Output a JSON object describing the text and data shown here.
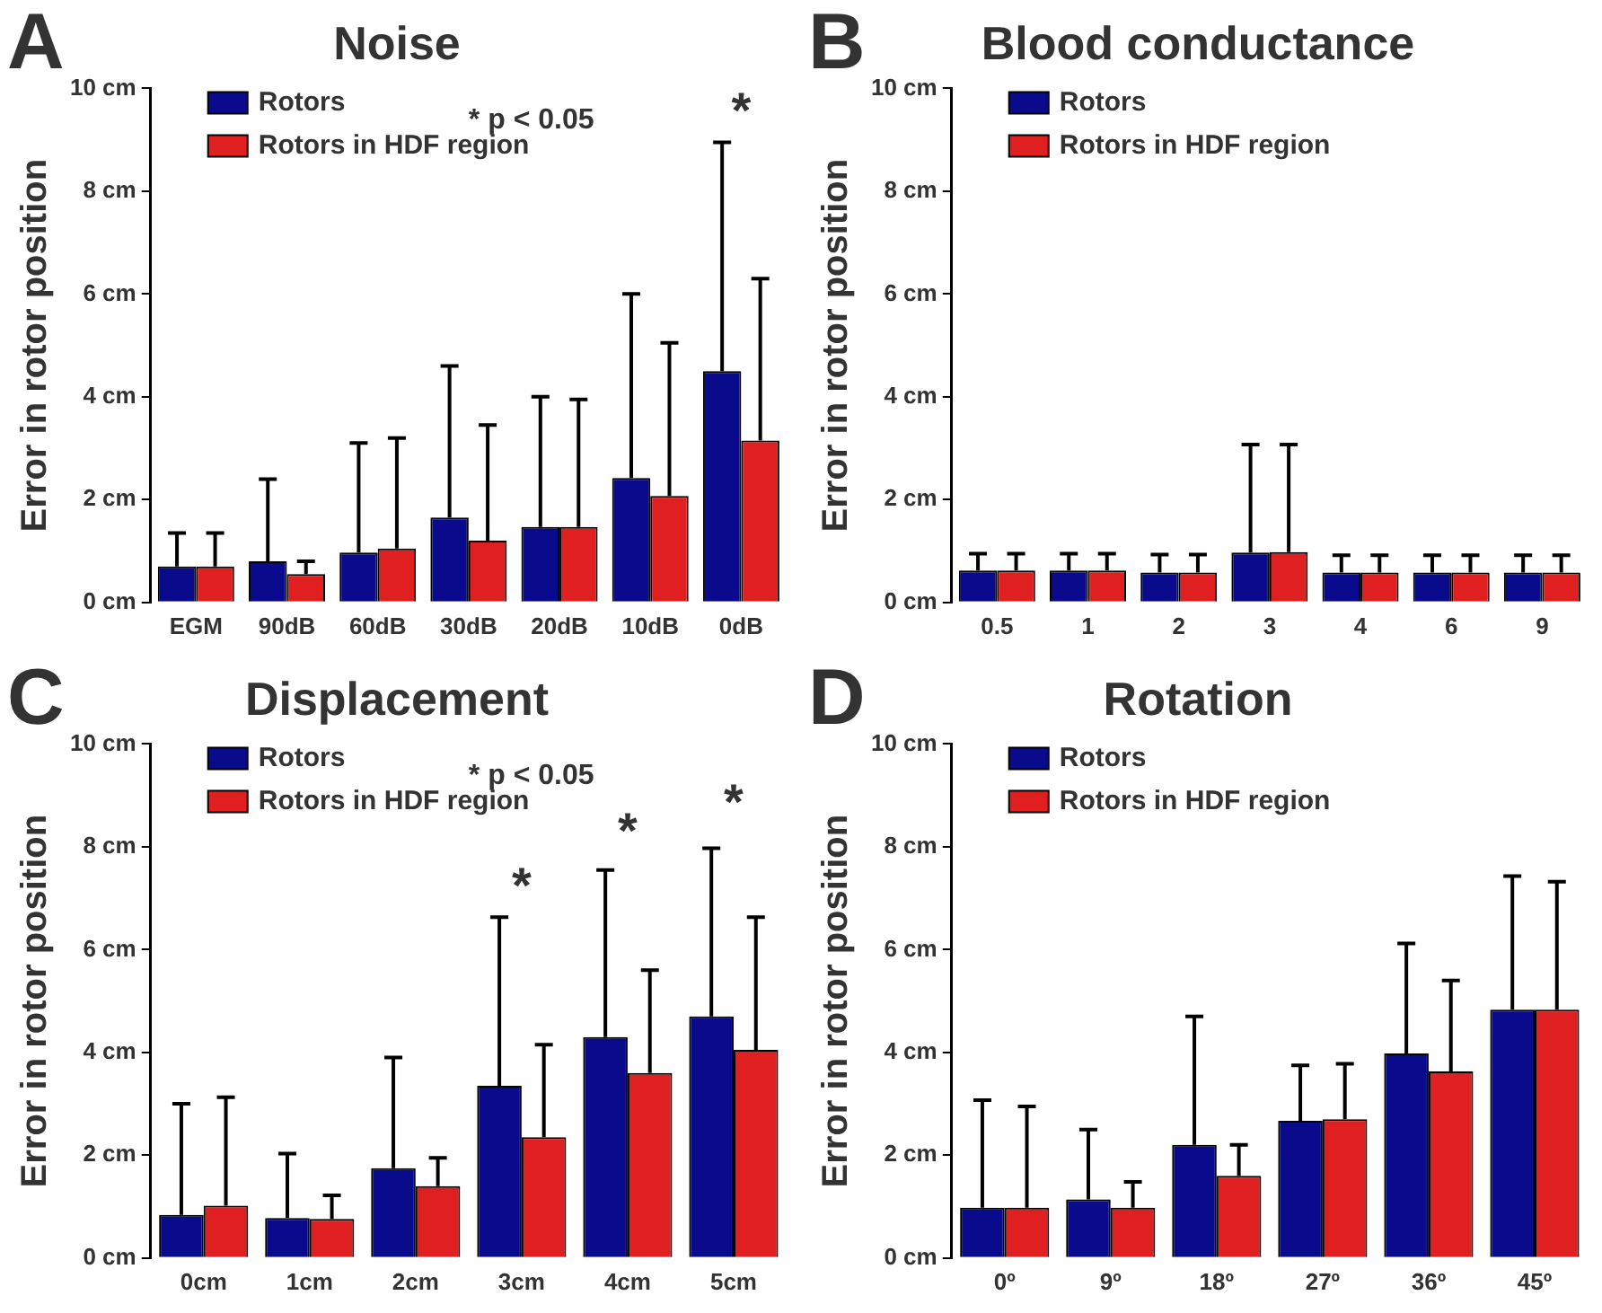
{
  "chart_data": [
    {
      "type": "bar",
      "title": "Noise",
      "ylabel": "Error in rotor position",
      "categories": [
        "EGM",
        "90dB",
        "60dB",
        "30dB",
        "20dB",
        "10dB",
        "0dB"
      ],
      "ylim": [
        0,
        10
      ],
      "yticks": [
        {
          "value": 0,
          "label": "0 cm"
        },
        {
          "value": 2,
          "label": "2 cm"
        },
        {
          "value": 4,
          "label": "4 cm"
        },
        {
          "value": 6,
          "label": "6 cm"
        },
        {
          "value": 8,
          "label": "8 cm"
        },
        {
          "value": 10,
          "label": "10 cm"
        }
      ],
      "grid": false,
      "legend": "top left",
      "series": [
        {
          "name": "Rotors",
          "color": "#0a0a8c",
          "values": [
            0.7,
            0.8,
            0.97,
            1.65,
            1.47,
            2.42,
            4.5
          ],
          "errors": [
            [
              0.7,
              1.35
            ],
            [
              0.8,
              2.4
            ],
            [
              0.97,
              3.1
            ],
            [
              1.65,
              4.6
            ],
            [
              1.47,
              4.0
            ],
            [
              2.42,
              6.0
            ],
            [
              4.5,
              8.95
            ]
          ]
        },
        {
          "name": "Rotors in HDF region",
          "color": "#e02020",
          "values": [
            0.7,
            0.55,
            1.05,
            1.2,
            1.47,
            2.07,
            3.15
          ],
          "errors": [
            [
              0.7,
              1.35
            ],
            [
              0.55,
              0.8
            ],
            [
              1.05,
              3.2
            ],
            [
              1.2,
              3.45
            ],
            [
              1.47,
              3.95
            ],
            [
              2.07,
              5.05
            ],
            [
              3.15,
              6.3
            ]
          ]
        }
      ],
      "annotations": [
        "A",
        "* p < 0.05",
        "*"
      ]
    },
    {
      "type": "bar",
      "title": "Blood conductance",
      "ylabel": "Error in rotor position",
      "categories": [
        "0.5",
        "1",
        "2",
        "3",
        "4",
        "6",
        "9"
      ],
      "ylim": [
        0,
        10
      ],
      "yticks": [
        {
          "value": 0,
          "label": "0 cm"
        },
        {
          "value": 2,
          "label": "2 cm"
        },
        {
          "value": 4,
          "label": "4 cm"
        },
        {
          "value": 6,
          "label": "6 cm"
        },
        {
          "value": 8,
          "label": "8 cm"
        },
        {
          "value": 10,
          "label": "10 cm"
        }
      ],
      "grid": false,
      "legend": "top left",
      "series": [
        {
          "name": "Rotors",
          "color": "#0a0a8c",
          "values": [
            0.62,
            0.62,
            0.58,
            0.97,
            0.58,
            0.58,
            0.58
          ],
          "errors": [
            [
              0.62,
              0.95
            ],
            [
              0.62,
              0.95
            ],
            [
              0.58,
              0.93
            ],
            [
              0.97,
              3.07
            ],
            [
              0.58,
              0.92
            ],
            [
              0.58,
              0.92
            ],
            [
              0.58,
              0.92
            ]
          ]
        },
        {
          "name": "Rotors in HDF region",
          "color": "#e02020",
          "values": [
            0.62,
            0.62,
            0.58,
            0.98,
            0.58,
            0.58,
            0.58
          ],
          "errors": [
            [
              0.62,
              0.95
            ],
            [
              0.62,
              0.95
            ],
            [
              0.58,
              0.93
            ],
            [
              0.98,
              3.07
            ],
            [
              0.58,
              0.92
            ],
            [
              0.58,
              0.92
            ],
            [
              0.58,
              0.92
            ]
          ]
        }
      ],
      "annotations": [
        "B"
      ]
    },
    {
      "type": "bar",
      "title": "Displacement",
      "ylabel": "Error in rotor position",
      "categories": [
        "0cm",
        "1cm",
        "2cm",
        "3cm",
        "4cm",
        "5cm"
      ],
      "ylim": [
        0,
        10
      ],
      "yticks": [
        {
          "value": 0,
          "label": "0 cm"
        },
        {
          "value": 2,
          "label": "2 cm"
        },
        {
          "value": 4,
          "label": "4 cm"
        },
        {
          "value": 6,
          "label": "6 cm"
        },
        {
          "value": 8,
          "label": "8 cm"
        },
        {
          "value": 10,
          "label": "10 cm"
        }
      ],
      "grid": false,
      "legend": "top left",
      "series": [
        {
          "name": "Rotors",
          "color": "#0a0a8c",
          "values": [
            0.84,
            0.78,
            1.75,
            3.35,
            4.3,
            4.7
          ],
          "errors": [
            [
              0.84,
              3.0
            ],
            [
              0.78,
              2.03
            ],
            [
              1.75,
              3.9
            ],
            [
              3.35,
              6.63
            ],
            [
              4.3,
              7.55
            ],
            [
              4.7,
              7.97
            ]
          ]
        },
        {
          "name": "Rotors in HDF region",
          "color": "#e02020",
          "values": [
            1.02,
            0.76,
            1.4,
            2.35,
            3.6,
            4.05
          ],
          "errors": [
            [
              1.02,
              3.13
            ],
            [
              0.76,
              1.22
            ],
            [
              1.4,
              1.95
            ],
            [
              2.35,
              4.15
            ],
            [
              3.6,
              5.6
            ],
            [
              4.05,
              6.63
            ]
          ]
        }
      ],
      "annotations": [
        "C",
        "* p < 0.05",
        "*",
        "*",
        "*"
      ]
    },
    {
      "type": "bar",
      "title": "Rotation",
      "ylabel": "Error in rotor position",
      "categories": [
        "0º",
        "9º",
        "18º",
        "27º",
        "36º",
        "45º"
      ],
      "ylim": [
        0,
        10
      ],
      "yticks": [
        {
          "value": 0,
          "label": "0 cm"
        },
        {
          "value": 2,
          "label": "2 cm"
        },
        {
          "value": 4,
          "label": "4 cm"
        },
        {
          "value": 6,
          "label": "6 cm"
        },
        {
          "value": 8,
          "label": "8 cm"
        },
        {
          "value": 10,
          "label": "10 cm"
        }
      ],
      "grid": false,
      "legend": "top left",
      "series": [
        {
          "name": "Rotors",
          "color": "#0a0a8c",
          "values": [
            0.98,
            1.14,
            2.2,
            2.67,
            3.98,
            4.83
          ],
          "errors": [
            [
              0.98,
              3.07
            ],
            [
              1.14,
              2.5
            ],
            [
              2.2,
              4.7
            ],
            [
              2.67,
              3.75
            ],
            [
              3.98,
              6.12
            ],
            [
              4.83,
              7.43
            ]
          ]
        },
        {
          "name": "Rotors in HDF region",
          "color": "#e02020",
          "values": [
            0.98,
            0.98,
            1.6,
            2.7,
            3.63,
            4.83
          ],
          "errors": [
            [
              0.98,
              2.95
            ],
            [
              0.98,
              1.48
            ],
            [
              1.6,
              2.2
            ],
            [
              2.7,
              3.78
            ],
            [
              3.63,
              5.4
            ],
            [
              4.83,
              7.32
            ]
          ]
        }
      ],
      "annotations": [
        "D"
      ]
    }
  ]
}
